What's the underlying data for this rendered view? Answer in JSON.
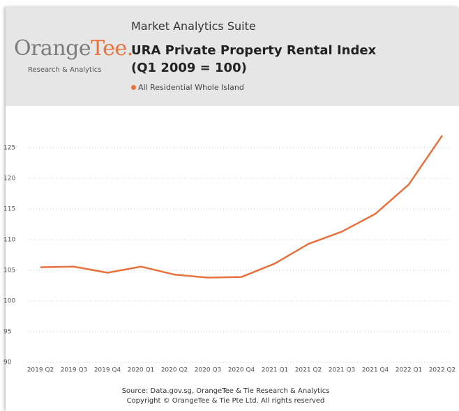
{
  "header": {
    "logo_main": "Orange",
    "logo_accent": "Tee.",
    "logo_sub": "Research & Analytics",
    "suite": "Market Analytics Suite"
  },
  "chart_data": {
    "type": "line",
    "title": "URA Private Property Rental Index",
    "subtitle": "(Q1 2009 = 100)",
    "categories": [
      "2019 Q2",
      "2019 Q3",
      "2019 Q4",
      "2020 Q1",
      "2020 Q2",
      "2020 Q3",
      "2020 Q4",
      "2021 Q1",
      "2021 Q2",
      "2021 Q3",
      "2021 Q4",
      "2022 Q1",
      "2022 Q2"
    ],
    "series": [
      {
        "name": "All Residential Whole Island",
        "color": "#e8713c",
        "values": [
          105.5,
          105.6,
          104.6,
          105.6,
          104.3,
          103.8,
          103.9,
          106.1,
          109.3,
          111.3,
          114.2,
          119.0,
          127.0
        ]
      }
    ],
    "ylim": [
      90,
      130
    ],
    "yticks": [
      90,
      95,
      100,
      105,
      110,
      115,
      120,
      125
    ],
    "grid": true
  },
  "footer": {
    "source": "Source: Data.gov.sg, OrangeTee & Tie Research & Analytics",
    "copyright": "Copyright © OrangeTee & Tie Pte Ltd. All rights reserved"
  }
}
